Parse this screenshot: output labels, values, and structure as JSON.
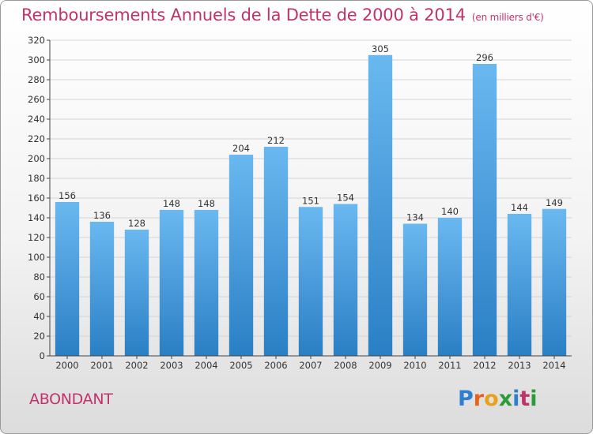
{
  "title": "Remboursements Annuels de la Dette de 2000 à 2014",
  "subtitle": "(en milliers d'€)",
  "town": "ABONDANT",
  "logo": {
    "letters": [
      "P",
      "r",
      "o",
      "x",
      "i",
      "t",
      "i"
    ],
    "colors": [
      "#2f7fd0",
      "#e8621a",
      "#e8a21a",
      "#2f9a3a",
      "#2f7fd0",
      "#c0336a",
      "#2f9a3a"
    ]
  },
  "colors": {
    "bar_top": "#6ab8f0",
    "bar_bottom": "#2a7fc4",
    "accent": "#c0336a"
  },
  "chart_data": {
    "type": "bar",
    "categories": [
      "2000",
      "2001",
      "2002",
      "2003",
      "2004",
      "2005",
      "2006",
      "2007",
      "2008",
      "2009",
      "2010",
      "2011",
      "2012",
      "2013",
      "2014"
    ],
    "values": [
      156,
      136,
      128,
      148,
      148,
      204,
      212,
      151,
      154,
      305,
      134,
      140,
      296,
      144,
      149
    ],
    "ylim": [
      0,
      320
    ],
    "yticks": [
      0,
      20,
      40,
      60,
      80,
      100,
      120,
      140,
      160,
      180,
      200,
      220,
      240,
      260,
      280,
      300,
      320
    ],
    "grid": true,
    "data_labels": true
  }
}
